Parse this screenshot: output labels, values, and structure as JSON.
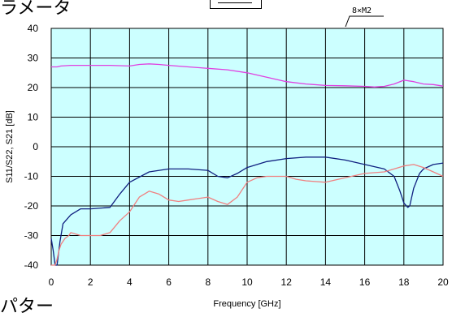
{
  "page": {
    "fragment_top": "ラメータ",
    "fragment_bottom": "パター"
  },
  "chart_data": {
    "type": "line",
    "title": "",
    "xlabel": "Frequency [GHz]",
    "ylabel": "S11/S22, S21 [dB]",
    "xlim": [
      0,
      20
    ],
    "ylim": [
      -40,
      40
    ],
    "xticks": [
      "0",
      "2",
      "4",
      "6",
      "8",
      "10",
      "12",
      "14",
      "16",
      "18",
      "20"
    ],
    "yticks": [
      "40",
      "30",
      "20",
      "10",
      "0",
      "-10",
      "-20",
      "-30",
      "-40"
    ],
    "grid": true,
    "background_color": "#ccffff",
    "annotation": "8×M2",
    "series": [
      {
        "color": "#e040e0",
        "x": [
          0,
          0.3,
          0.5,
          1,
          2,
          3,
          4,
          4.5,
          5,
          5.5,
          6,
          7,
          8,
          9,
          10,
          11,
          12,
          13,
          14,
          15,
          16,
          16.5,
          17,
          17.5,
          18,
          18.5,
          19,
          19.5,
          20
        ],
        "y": [
          27,
          27,
          27.3,
          27.5,
          27.5,
          27.5,
          27.3,
          27.8,
          28,
          27.8,
          27.5,
          27,
          26.5,
          26,
          25,
          23.5,
          22,
          21.2,
          20.7,
          20.6,
          20.4,
          20.2,
          20.4,
          21.2,
          22.5,
          22,
          21.2,
          21,
          20.5
        ]
      },
      {
        "color": "#102080",
        "x": [
          0,
          0.1,
          0.2,
          0.3,
          0.45,
          0.6,
          1,
          1.5,
          2,
          3,
          3.5,
          4,
          5,
          6,
          7,
          8,
          8.5,
          9,
          9.5,
          10,
          11,
          12,
          13,
          14,
          15,
          16,
          17,
          17.5,
          17.8,
          18,
          18.2,
          18.3,
          18.5,
          18.8,
          19,
          19.5,
          20
        ],
        "y": [
          -31,
          -35,
          -40,
          -40,
          -32,
          -26,
          -23,
          -21,
          -21,
          -20.5,
          -16,
          -12,
          -8.5,
          -7.5,
          -7.5,
          -8,
          -10,
          -10.5,
          -9,
          -7,
          -5,
          -4,
          -3.5,
          -3.5,
          -4.5,
          -6,
          -7.5,
          -10,
          -15,
          -19,
          -20.5,
          -20,
          -14,
          -9,
          -7.5,
          -6,
          -5.5
        ]
      },
      {
        "color": "#f08080",
        "x": [
          0,
          0.2,
          0.3,
          0.4,
          0.5,
          0.7,
          0.9,
          1,
          1.5,
          2,
          2.5,
          3,
          3.5,
          4,
          4.5,
          5,
          5.5,
          6,
          6.5,
          7,
          7.5,
          8,
          8.5,
          9,
          9.5,
          10,
          10.5,
          11,
          12,
          12.5,
          13,
          14,
          15,
          16,
          17,
          17.5,
          18,
          18.5,
          19,
          19.5,
          20
        ],
        "y": [
          -40,
          -40,
          -38,
          -35,
          -33,
          -31,
          -30,
          -29,
          -30,
          -30,
          -30,
          -29,
          -25,
          -22,
          -17,
          -15,
          -16,
          -18,
          -18.5,
          -18,
          -17.5,
          -17,
          -18.5,
          -19.5,
          -17,
          -12,
          -10.5,
          -10,
          -10,
          -11,
          -11.5,
          -12,
          -10.5,
          -9,
          -8.5,
          -7.5,
          -6.5,
          -6,
          -7,
          -8.5,
          -10
        ]
      }
    ]
  }
}
